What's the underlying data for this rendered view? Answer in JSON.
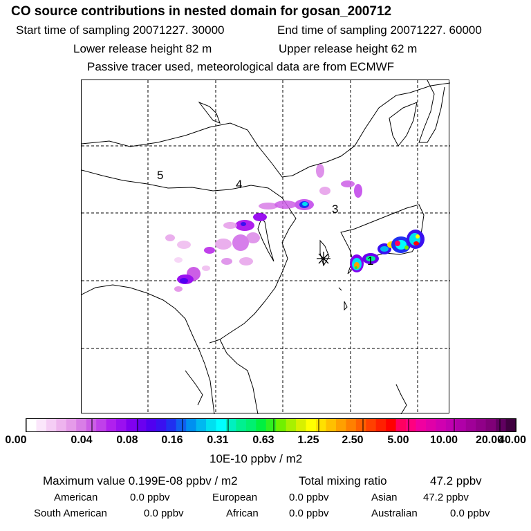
{
  "title": "CO  source contributions in nested domain for gosan_200712",
  "header": {
    "start_label": "Start time of sampling 20071227. 30000",
    "end_label": "End time of sampling 20071227. 60000",
    "lower_label": "Lower release height   82 m",
    "upper_label": "Upper release height   62 m",
    "tracer_note": "Passive tracer used, meteorological data are from ECMWF"
  },
  "map": {
    "region_labels": [
      "5",
      "4",
      "3",
      "1"
    ],
    "receptor_symbol": "✳"
  },
  "colorbar": {
    "ticks": [
      "0.00",
      "0.04",
      "0.08",
      "0.16",
      "0.31",
      "0.63",
      "1.25",
      "2.50",
      "5.00",
      "10.00",
      "20.00",
      "40.00"
    ],
    "unit": "10E-10 ppbv / m2",
    "colors": [
      "#ffffff",
      "#fbe6fb",
      "#f5cdf5",
      "#eeb4ee",
      "#e59be9",
      "#d87ee6",
      "#cc5ee6",
      "#c040ea",
      "#b020ee",
      "#9a10f0",
      "#8000f0",
      "#6a00f0",
      "#5000f0",
      "#3a10f0",
      "#2030f0",
      "#1060f0",
      "#0090f0",
      "#00b8f0",
      "#00e0f0",
      "#00ffff",
      "#00f0c0",
      "#00f090",
      "#00f070",
      "#00f040",
      "#30f020",
      "#70f000",
      "#a8f000",
      "#d8f000",
      "#ffff00",
      "#ffe000",
      "#ffc000",
      "#ffa000",
      "#ff8000",
      "#ff6000",
      "#ff4000",
      "#ff2000",
      "#ff0000",
      "#ff0060",
      "#ff0080",
      "#f000a0",
      "#e000a8",
      "#d000b0",
      "#c000b0",
      "#b000a8",
      "#a00098",
      "#900088",
      "#800078",
      "#600060",
      "#400040"
    ]
  },
  "summary": {
    "max_label": "Maximum value  0.199E-08 ppbv / m2",
    "total_label": "Total mixing ratio",
    "total_value": "47.2 ppbv",
    "sources": [
      {
        "name": "American",
        "value": "0.0 ppbv"
      },
      {
        "name": "European",
        "value": "0.0 ppbv"
      },
      {
        "name": "Asian",
        "value": "47.2 ppbv"
      },
      {
        "name": "South American",
        "value": "0.0 ppbv"
      },
      {
        "name": "African",
        "value": "0.0 ppbv"
      },
      {
        "name": "Australian",
        "value": "0.0 ppbv"
      }
    ]
  }
}
